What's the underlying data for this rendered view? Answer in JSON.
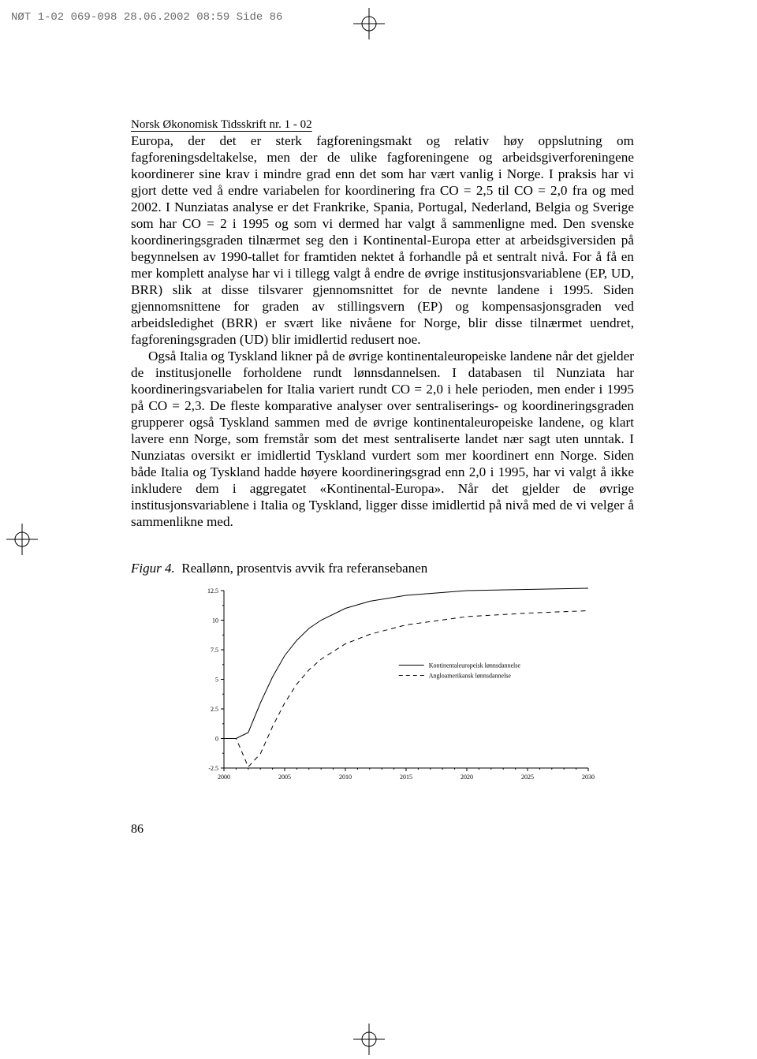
{
  "header": {
    "slug": "NØT 1-02 069-098  28.06.2002  08:59  Side 86"
  },
  "running_head": "Norsk Økonomisk Tidsskrift nr. 1 - 02",
  "paragraphs": {
    "p1": "Europa, der det er sterk fagforeningsmakt og relativ høy oppslutning om fagforeningsdeltakelse, men der de ulike fagforeningene og arbeidsgiverforeningene koordinerer sine krav i mindre grad enn det som har vært vanlig i Norge. I praksis har vi gjort dette ved å endre variabelen for koordinering fra CO = 2,5 til CO = 2,0 fra og med 2002. I Nunziatas analyse er det Frankrike, Spania, Portugal, Nederland, Belgia og Sverige som har CO = 2 i 1995 og som vi dermed har valgt å sammenligne med. Den svenske koordineringsgraden tilnærmet seg den i Kontinental-Europa etter at arbeidsgiversiden på begynnelsen av 1990-tallet for framtiden nektet å forhandle på et sentralt nivå. For å få en mer komplett analyse har vi i tillegg valgt å endre de øvrige institusjonsvariablene (EP, UD, BRR) slik at disse tilsvarer gjennomsnittet for de nevnte landene i 1995. Siden gjennomsnittene for graden av stillingsvern (EP) og kompensasjonsgraden ved arbeidsledighet (BRR) er svært like nivåene for Norge, blir disse tilnærmet uendret, fagforeningsgraden (UD) blir imidlertid redusert noe.",
    "p2": "Også  Italia og Tyskland likner på de øvrige kontinentaleuropeiske landene når det gjelder de institusjonelle forholdene rundt lønnsdannelsen. I databasen til Nunziata har koordineringsvariabelen for Italia variert rundt CO = 2,0 i hele perioden, men ender i 1995 på CO = 2,3. De fleste komparative analyser over sentraliserings- og koordineringsgraden grupperer også Tyskland sammen med de øvrige kontinentaleuropeiske landene, og klart lavere enn Norge, som fremstår som det mest sentraliserte landet nær sagt uten unntak. I Nunziatas oversikt er imidlertid Tyskland vurdert som mer koordinert enn Norge. Siden både Italia og Tyskland hadde høyere koordineringsgrad enn 2,0 i 1995, har vi valgt å ikke inkludere dem i aggregatet «Kontinental-Europa».  Når det gjelder de øvrige institusjonsvariablene i Italia og Tyskland, ligger disse imidlertid på nivå med de vi velger å sammenlikne med."
  },
  "figure": {
    "label": "Figur 4.",
    "caption": "Reallønn, prosentvis avvik fra referansebanen",
    "chart": {
      "type": "line",
      "background_color": "#ffffff",
      "axis_color": "#000000",
      "grid_color": "#ffffff",
      "font_family": "Times New Roman",
      "tick_fontsize": 8,
      "legend_fontsize": 8,
      "xlim": [
        2000,
        2030
      ],
      "xticks": [
        2000,
        2005,
        2010,
        2015,
        2020,
        2025,
        2030
      ],
      "ylim": [
        -2.5,
        12.5
      ],
      "yticks": [
        -2.5,
        0,
        2.5,
        5,
        7.5,
        10,
        12.5
      ],
      "legend_position": "right",
      "series": [
        {
          "name": "Kontinentaleuropeisk lønnsdannelse",
          "color": "#000000",
          "dash": "solid",
          "line_width": 1,
          "x": [
            2000,
            2001,
            2002,
            2003,
            2004,
            2005,
            2006,
            2007,
            2008,
            2010,
            2012,
            2015,
            2020,
            2025,
            2030
          ],
          "y": [
            0,
            0,
            0.5,
            3.0,
            5.2,
            7.0,
            8.3,
            9.3,
            10.0,
            11.0,
            11.6,
            12.1,
            12.5,
            12.6,
            12.7
          ]
        },
        {
          "name": "Angloamerikansk lønnsdannelse",
          "color": "#000000",
          "dash": "dash",
          "line_width": 1,
          "x": [
            2000,
            2001,
            2002,
            2003,
            2004,
            2005,
            2006,
            2007,
            2008,
            2010,
            2012,
            2015,
            2020,
            2025,
            2030
          ],
          "y": [
            0,
            0,
            -2.4,
            -1.3,
            1.0,
            3.0,
            4.6,
            5.8,
            6.7,
            8.0,
            8.8,
            9.6,
            10.3,
            10.6,
            10.8
          ]
        }
      ]
    }
  },
  "page_number": "86",
  "crop_mark": {
    "stroke": "#000000",
    "stroke_width": 1
  }
}
